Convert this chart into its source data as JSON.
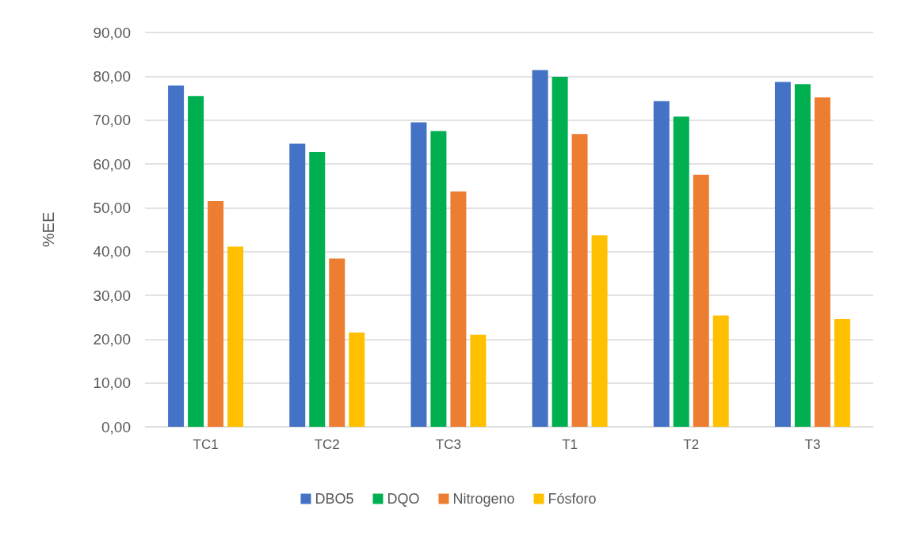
{
  "chart_data": {
    "type": "bar",
    "ylabel": "%EE",
    "categories": [
      "TC1",
      "TC2",
      "TC3",
      "T1",
      "T2",
      "T3"
    ],
    "series": [
      {
        "name": "DBO5",
        "color": "#4472c4",
        "values": [
          77.9,
          64.6,
          69.5,
          81.4,
          74.3,
          78.7
        ]
      },
      {
        "name": "DQO",
        "color": "#00b050",
        "values": [
          75.5,
          62.7,
          67.5,
          79.9,
          70.8,
          78.2
        ]
      },
      {
        "name": "Nitrogeno",
        "color": "#ed7d31",
        "values": [
          51.5,
          38.4,
          53.7,
          66.8,
          57.5,
          75.2
        ]
      },
      {
        "name": "Fósforo",
        "color": "#ffc000",
        "values": [
          41.1,
          21.5,
          21.0,
          43.7,
          25.4,
          24.6
        ]
      }
    ],
    "ylim": [
      0,
      90
    ],
    "yticks": [
      {
        "value": 0,
        "label": "0,00"
      },
      {
        "value": 10,
        "label": "10,00"
      },
      {
        "value": 20,
        "label": "20,00"
      },
      {
        "value": 30,
        "label": "30,00"
      },
      {
        "value": 40,
        "label": "40,00"
      },
      {
        "value": 50,
        "label": "50,00"
      },
      {
        "value": 60,
        "label": "60,00"
      },
      {
        "value": 70,
        "label": "70,00"
      },
      {
        "value": 80,
        "label": "80,00"
      },
      {
        "value": 90,
        "label": "90,00"
      }
    ],
    "grid": "y",
    "legend": "bottom"
  }
}
